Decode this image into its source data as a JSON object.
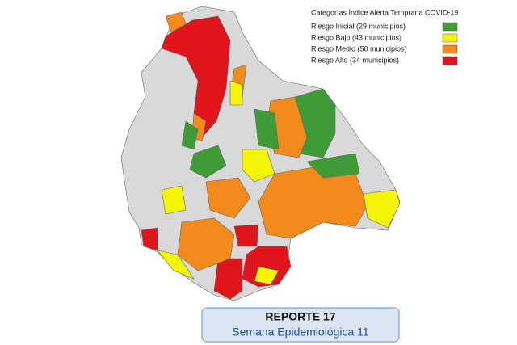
{
  "legend": {
    "title": "Categorías Índice Alerta Temprana COVID-19",
    "items": [
      {
        "label": "Riesgo Inicial (29 municipios)",
        "color": "#3f9b35"
      },
      {
        "label": "Riesgo Bajo (43 municipios)",
        "color": "#f5f50a"
      },
      {
        "label": "Riesgo Medio (50 municipios)",
        "color": "#f28a1c"
      },
      {
        "label": "Riesgo Alto (34 municipios)",
        "color": "#e0141b"
      }
    ]
  },
  "report": {
    "title": "REPORTE 17",
    "subtitle": "Semana Epidemiológica 11"
  }
}
